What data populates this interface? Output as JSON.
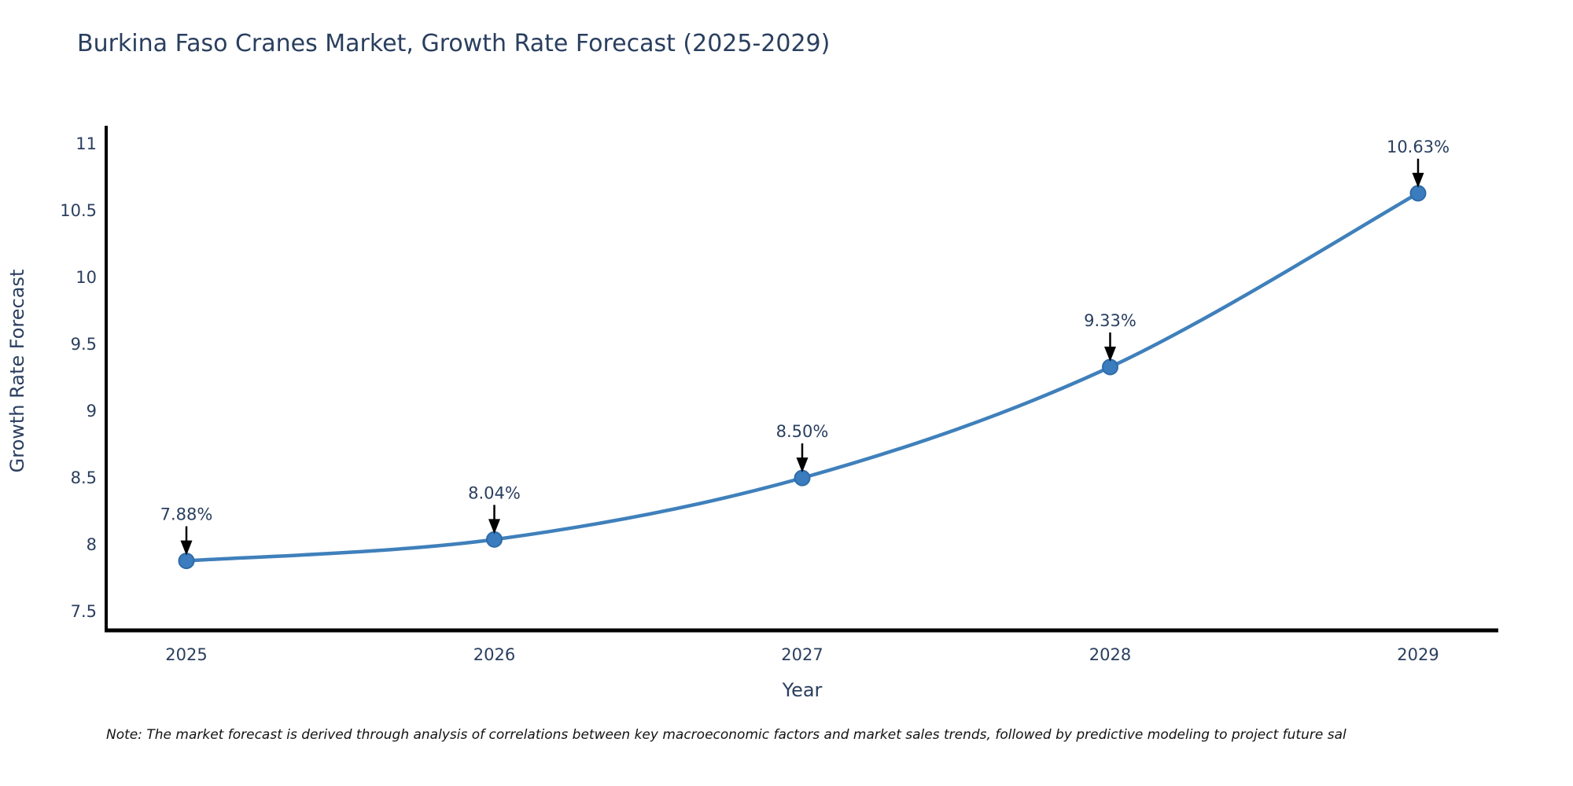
{
  "page": {
    "background": "#ffffff"
  },
  "chart_data": {
    "type": "line",
    "title": "Burkina Faso Cranes Market, Growth Rate Forecast (2025-2029)",
    "xlabel": "Year",
    "ylabel": "Growth Rate Forecast",
    "categories": [
      "2025",
      "2026",
      "2027",
      "2028",
      "2029"
    ],
    "series": [
      {
        "name": "Growth Rate Forecast",
        "values": [
          7.88,
          8.04,
          8.5,
          9.33,
          10.63
        ]
      }
    ],
    "point_labels": [
      "7.88%",
      "8.04%",
      "8.50%",
      "9.33%",
      "10.63%"
    ],
    "ylim": [
      7.36,
      11.135
    ],
    "yticks": [
      "7.5",
      "8",
      "8.5",
      "9",
      "9.5",
      "10",
      "10.5",
      "11"
    ],
    "grid": false,
    "legend": "none",
    "line_shape": "spline",
    "annotation_style": "value-label-with-down-arrow",
    "colors": {
      "line": "#3f80bb",
      "marker": "#3a7cbe",
      "marker_edge": "#2e6ca8",
      "axis": "#000000",
      "label_text": "#2a3f5f",
      "arrow": "#000000"
    }
  },
  "note": {
    "text": "Note: The market forecast is derived through analysis of correlations between key macroeconomic factors and market sales trends, followed by predictive modeling to project future sal"
  }
}
